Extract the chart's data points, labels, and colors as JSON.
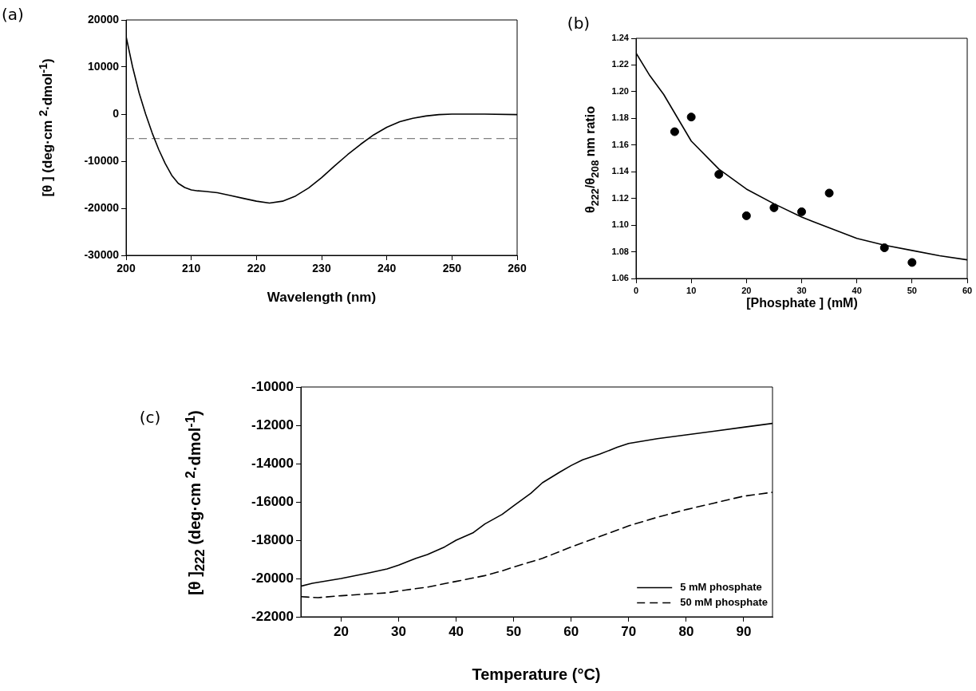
{
  "chart_data": [
    {
      "type": "line",
      "title": "(a)",
      "xlabel": "Wavelength (nm)",
      "ylabel": "[θ ] (deg·cm $^{2}$·dmol$^{-1}$)",
      "xlim": [
        200,
        260
      ],
      "xticks": [
        200,
        210,
        220,
        230,
        240,
        250,
        260
      ],
      "ylim": [
        -30000,
        20000
      ],
      "yticks": [
        -30000,
        -20000,
        -10000,
        0,
        10000,
        20000
      ],
      "grid": false,
      "legend": false,
      "ref_lines": [
        {
          "axis": "y",
          "value": -5200,
          "color": "#808080",
          "line_style": "dashed"
        }
      ],
      "series": [
        {
          "color": "#000000",
          "x": [
            200,
            201,
            202,
            203,
            204,
            205,
            206,
            207,
            208,
            209,
            210,
            211,
            212,
            214,
            216,
            218,
            220,
            222,
            224,
            226,
            228,
            230,
            232,
            234,
            236,
            238,
            240,
            242,
            244,
            246,
            248,
            250,
            255,
            260
          ],
          "values": [
            16500,
            10000,
            4500,
            0,
            -4000,
            -7500,
            -10500,
            -13000,
            -14700,
            -15600,
            -16100,
            -16300,
            -16400,
            -16700,
            -17300,
            -17900,
            -18500,
            -18900,
            -18500,
            -17400,
            -15700,
            -13500,
            -11000,
            -8600,
            -6400,
            -4400,
            -2800,
            -1600,
            -900,
            -400,
            -100,
            0,
            0,
            -100
          ]
        }
      ]
    },
    {
      "type": "scatter",
      "title": "(b)",
      "xlabel": "[Phosphate ] (mM)",
      "ylabel": "θ$_{222}$/θ$_{208}$ nm ratio",
      "xlim": [
        0,
        60
      ],
      "xticks": [
        0,
        10,
        20,
        30,
        40,
        50,
        60
      ],
      "ylim": [
        1.06,
        1.24
      ],
      "yticks": [
        {
          "value": 1.06,
          "label": "1.06"
        },
        {
          "value": 1.08,
          "label": "1.08"
        },
        {
          "value": 1.1,
          "label": "1.10"
        },
        {
          "value": 1.12,
          "label": "1.12"
        },
        {
          "value": 1.14,
          "label": "1.14"
        },
        {
          "value": 1.16,
          "label": "1.16"
        },
        {
          "value": 1.18,
          "label": "1.18"
        },
        {
          "value": 1.2,
          "label": "1.20"
        },
        {
          "value": 1.22,
          "label": "1.22"
        },
        {
          "value": 1.24,
          "label": "1.24"
        }
      ],
      "grid": false,
      "legend": false,
      "marker": "circle",
      "series": [
        {
          "color": "#000000",
          "x": [
            7,
            10,
            15,
            20,
            25,
            30,
            35,
            45,
            50
          ],
          "values": [
            1.17,
            1.181,
            1.138,
            1.107,
            1.113,
            1.11,
            1.124,
            1.083,
            1.072
          ]
        },
        {
          "type": "line",
          "color": "#000000",
          "marker": "none",
          "x": [
            0,
            2.5,
            5,
            10,
            15,
            20,
            25,
            30,
            35,
            40,
            45,
            50,
            55,
            60
          ],
          "values": [
            1.229,
            1.212,
            1.198,
            1.163,
            1.142,
            1.127,
            1.116,
            1.106,
            1.098,
            1.09,
            1.085,
            1.081,
            1.077,
            1.074
          ]
        }
      ]
    },
    {
      "type": "line",
      "title": "(c)",
      "xlabel": "Temperature (°C)",
      "ylabel": "[θ ]$_{222}$ (deg·cm $^{2}$·dmol$^{-1}$)",
      "xlim": [
        13,
        95
      ],
      "xticks": [
        20,
        30,
        40,
        50,
        60,
        70,
        80,
        90
      ],
      "ylim": [
        -22000,
        -10000
      ],
      "yticks": [
        -22000,
        -20000,
        -18000,
        -16000,
        -14000,
        -12000,
        -10000
      ],
      "grid": false,
      "legend": "bottom right",
      "series": [
        {
          "name": "5 mM phosphate",
          "color": "#000000",
          "line_style": "solid",
          "x": [
            13,
            15,
            20,
            25,
            28,
            30,
            33,
            35,
            38,
            40,
            43,
            45,
            48,
            50,
            53,
            55,
            58,
            60,
            62,
            65,
            68,
            70,
            75,
            80,
            85,
            90,
            95
          ],
          "values": [
            -20400,
            -20250,
            -20000,
            -19700,
            -19500,
            -19300,
            -18950,
            -18750,
            -18350,
            -18000,
            -17600,
            -17150,
            -16650,
            -16200,
            -15550,
            -15000,
            -14450,
            -14100,
            -13800,
            -13500,
            -13150,
            -12950,
            -12700,
            -12500,
            -12300,
            -12100,
            -11900
          ]
        },
        {
          "name": "50 mM phosphate",
          "color": "#000000",
          "line_style": "dashed",
          "x": [
            13,
            16,
            20,
            25,
            28,
            30,
            35,
            40,
            45,
            48,
            50,
            55,
            60,
            65,
            70,
            75,
            80,
            85,
            90,
            95
          ],
          "values": [
            -20950,
            -21000,
            -20900,
            -20800,
            -20750,
            -20650,
            -20450,
            -20150,
            -19850,
            -19600,
            -19400,
            -18950,
            -18350,
            -17800,
            -17250,
            -16800,
            -16400,
            -16050,
            -15700,
            -15500
          ]
        }
      ]
    }
  ]
}
